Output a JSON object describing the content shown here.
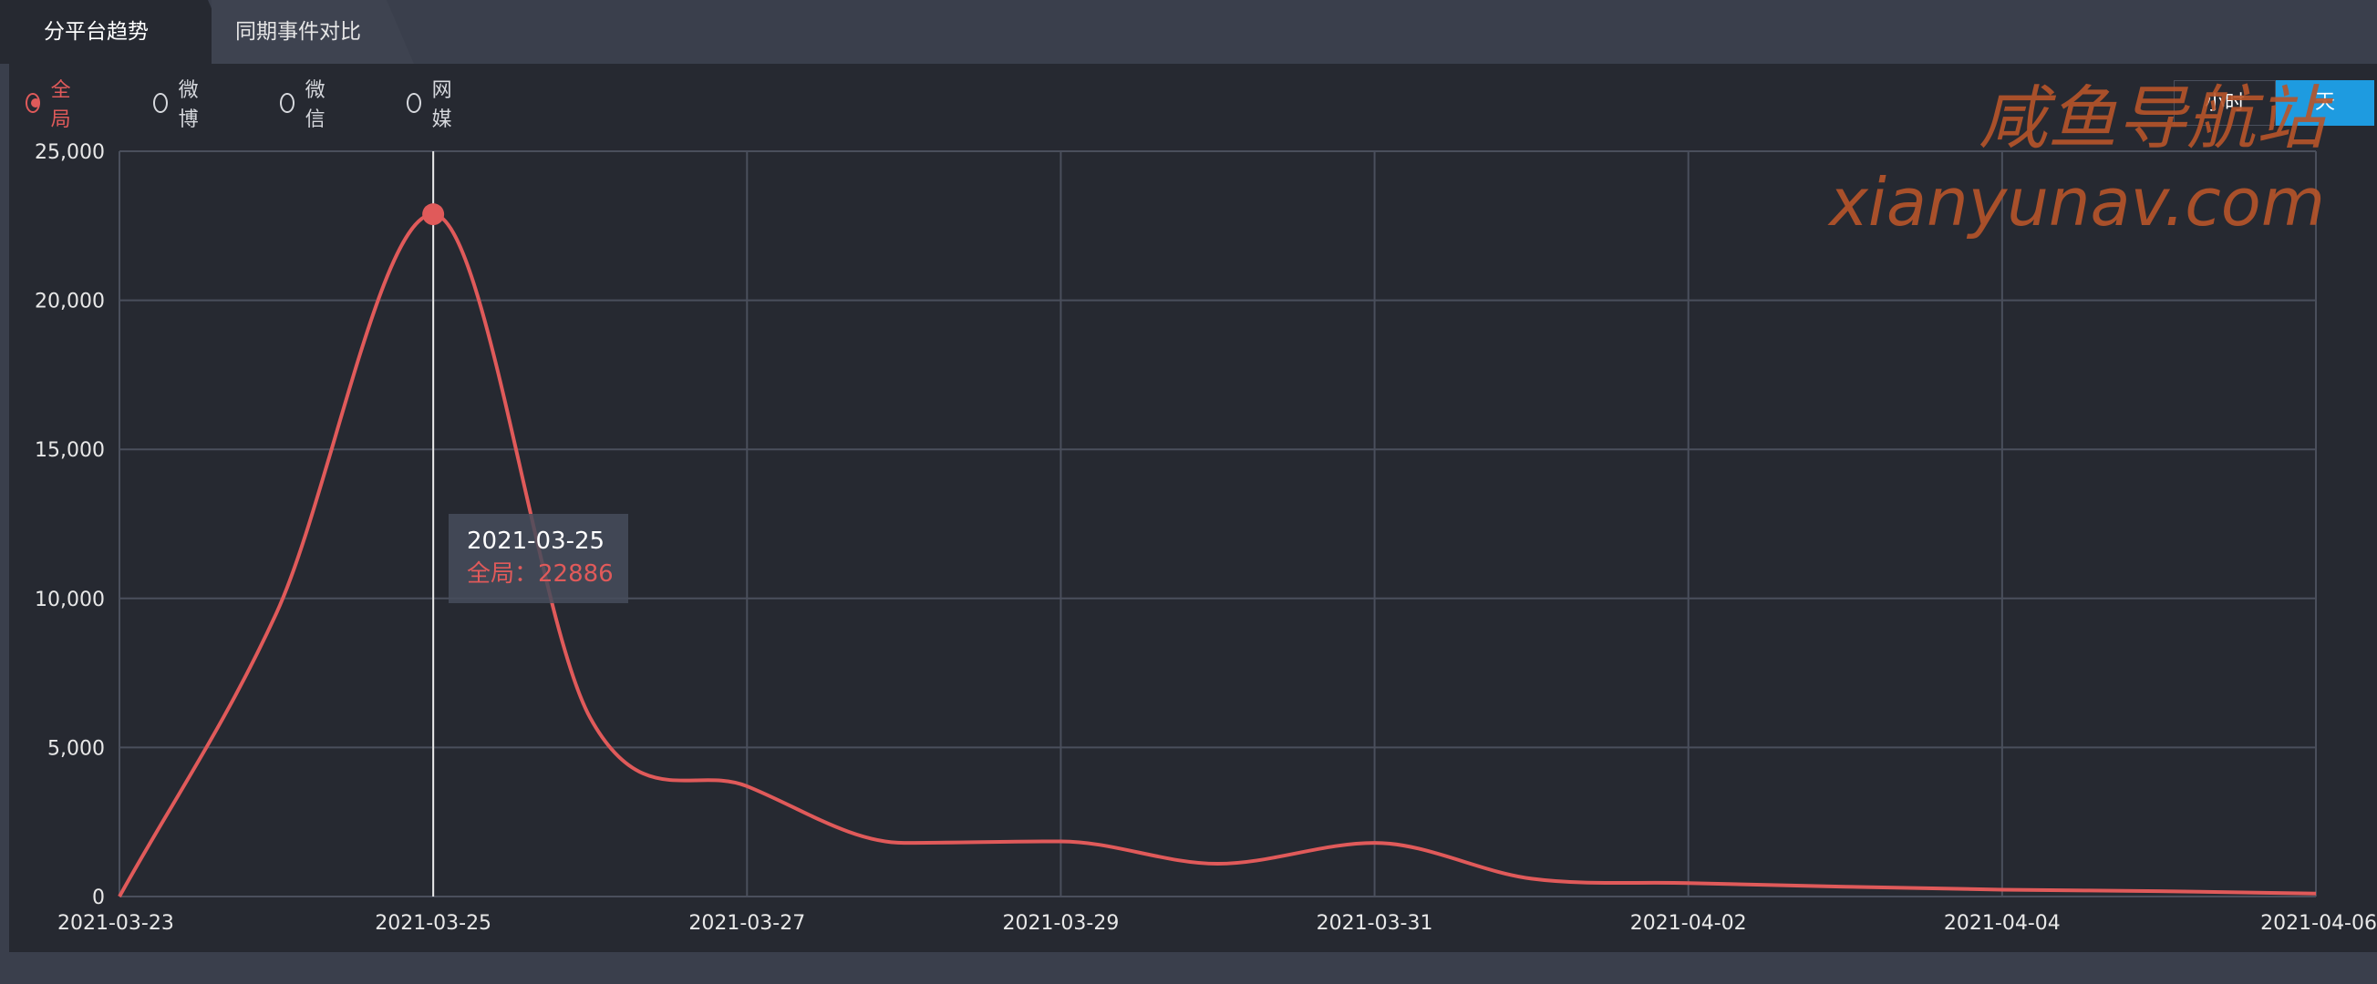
{
  "tabs": [
    {
      "label": "分平台趋势",
      "active": true
    },
    {
      "label": "同期事件对比",
      "active": false
    }
  ],
  "platforms": [
    {
      "label": "全局",
      "checked": true
    },
    {
      "label": "微博",
      "checked": false
    },
    {
      "label": "微信",
      "checked": false
    },
    {
      "label": "网媒",
      "checked": false
    }
  ],
  "granularity": {
    "hour": "小时",
    "day": "天",
    "selected": "天"
  },
  "watermark": {
    "line1": "咸鱼导航站",
    "line2": "xianyunav.com"
  },
  "tooltip": {
    "date": "2021-03-25",
    "series": "全局",
    "value": "22886",
    "text": "全局：22886"
  },
  "colors": {
    "series": "#e05a5a",
    "accent": "#1e9be0",
    "grid": "#4a4f5c",
    "background": "#262931"
  },
  "chart_data": {
    "type": "line",
    "title": "",
    "xlabel": "",
    "ylabel": "",
    "ylim": [
      0,
      25000
    ],
    "yticks": [
      "0",
      "5,000",
      "10,000",
      "15,000",
      "20,000",
      "25,000"
    ],
    "xticks": [
      "2021-03-23",
      "2021-03-25",
      "2021-03-27",
      "2021-03-29",
      "2021-03-31",
      "2021-04-02",
      "2021-04-04",
      "2021-04-06"
    ],
    "grid": true,
    "series": [
      {
        "name": "全局",
        "points": [
          [
            "2021-03-23",
            0
          ],
          [
            "2021-03-24",
            9500
          ],
          [
            "2021-03-25",
            22886
          ],
          [
            "2021-03-26",
            6000
          ],
          [
            "2021-03-27",
            3700
          ],
          [
            "2021-03-28",
            1800
          ],
          [
            "2021-03-29",
            1850
          ],
          [
            "2021-03-30",
            1100
          ],
          [
            "2021-03-31",
            1800
          ],
          [
            "2021-04-01",
            600
          ],
          [
            "2021-04-02",
            450
          ],
          [
            "2021-04-03",
            330
          ],
          [
            "2021-04-04",
            230
          ],
          [
            "2021-04-05",
            180
          ],
          [
            "2021-04-06",
            100
          ]
        ]
      }
    ],
    "highlight": {
      "date": "2021-03-25",
      "value": 22886
    }
  }
}
